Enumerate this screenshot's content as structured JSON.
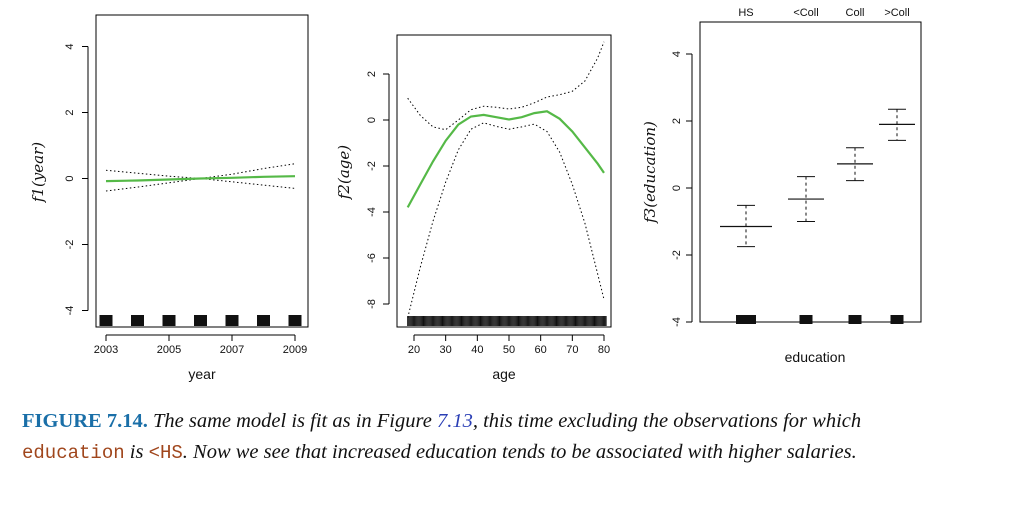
{
  "chart_data": [
    {
      "type": "line",
      "xlabel": "year",
      "ylabel": "f1(year)",
      "xlim": [
        2003,
        2009
      ],
      "ylim": [
        -4.2,
        4.3
      ],
      "xticks": [
        "2003",
        "2005",
        "2007",
        "2009"
      ],
      "yticks": [
        "-4",
        "-2",
        "0",
        "2",
        "4"
      ],
      "fit": {
        "x": [
          2003,
          2004,
          2005,
          2006,
          2007,
          2008,
          2009
        ],
        "y": [
          -0.08,
          -0.06,
          -0.03,
          0.0,
          0.02,
          0.05,
          0.07
        ]
      },
      "upper": {
        "x": [
          2003,
          2004,
          2005,
          2006,
          2007,
          2008,
          2009
        ],
        "y": [
          0.25,
          0.16,
          0.07,
          0.0,
          0.13,
          0.3,
          0.45
        ]
      },
      "lower": {
        "x": [
          2003,
          2004,
          2005,
          2006,
          2007,
          2008,
          2009
        ],
        "y": [
          -0.38,
          -0.26,
          -0.13,
          0.0,
          -0.1,
          -0.2,
          -0.3
        ]
      },
      "rug": [
        2003,
        2004,
        2005,
        2006,
        2007,
        2008,
        2009
      ]
    },
    {
      "type": "line",
      "xlabel": "age",
      "ylabel": "f2(age)",
      "xlim": [
        18,
        80
      ],
      "ylim": [
        -8.7,
        3.6
      ],
      "xticks": [
        "20",
        "30",
        "40",
        "50",
        "60",
        "70",
        "80"
      ],
      "yticks": [
        "-8",
        "-6",
        "-4",
        "-2",
        "0",
        "2"
      ],
      "fit": {
        "x": [
          18,
          22,
          26,
          30,
          34,
          38,
          42,
          46,
          50,
          54,
          58,
          62,
          66,
          70,
          74,
          78,
          80
        ],
        "y": [
          -3.8,
          -2.8,
          -1.8,
          -0.9,
          -0.2,
          0.15,
          0.22,
          0.12,
          0.02,
          0.12,
          0.3,
          0.38,
          0.05,
          -0.5,
          -1.2,
          -1.9,
          -2.3
        ]
      },
      "upper": {
        "x": [
          18,
          22,
          26,
          30,
          34,
          38,
          42,
          46,
          50,
          54,
          58,
          62,
          66,
          70,
          74,
          78,
          80
        ],
        "y": [
          0.95,
          0.2,
          -0.3,
          -0.42,
          0.0,
          0.45,
          0.6,
          0.55,
          0.48,
          0.55,
          0.75,
          1.0,
          1.1,
          1.25,
          1.7,
          2.7,
          3.4
        ]
      },
      "lower": {
        "x": [
          18,
          22,
          26,
          30,
          34,
          38,
          42,
          46,
          50,
          54,
          58,
          62,
          66,
          70,
          74,
          78,
          80
        ],
        "y": [
          -8.6,
          -6.4,
          -4.4,
          -2.7,
          -1.3,
          -0.4,
          -0.12,
          -0.28,
          -0.4,
          -0.3,
          -0.18,
          -0.5,
          -1.4,
          -2.8,
          -4.5,
          -6.7,
          -7.8
        ]
      },
      "rug_range": [
        18,
        80
      ]
    },
    {
      "type": "scatter",
      "xlabel": "education",
      "ylabel": "f3(education)",
      "ylim": [
        -4,
        4.5
      ],
      "yticks": [
        "-4",
        "-2",
        "0",
        "2",
        "4"
      ],
      "categories": [
        "HS",
        "<Coll",
        "Coll",
        ">Coll"
      ],
      "values": [
        -1.15,
        -0.33,
        0.72,
        1.9
      ],
      "upper": [
        -0.52,
        0.34,
        1.2,
        2.35
      ],
      "lower": [
        -1.75,
        -1.0,
        0.22,
        1.42
      ]
    }
  ],
  "caption": {
    "figure_label": "FIGURE 7.14.",
    "text_1": "The same model is fit as in Figure",
    "ref": "7.13",
    "text_2": ", this time excluding the observations for which",
    "code_1": "education",
    "text_3": "is",
    "code_2": "<HS",
    "text_4": ". Now we see that increased education tends to be associated with higher salaries."
  },
  "colors": {
    "fit": "#55b947",
    "band": "#000000",
    "axis": "#000000"
  }
}
